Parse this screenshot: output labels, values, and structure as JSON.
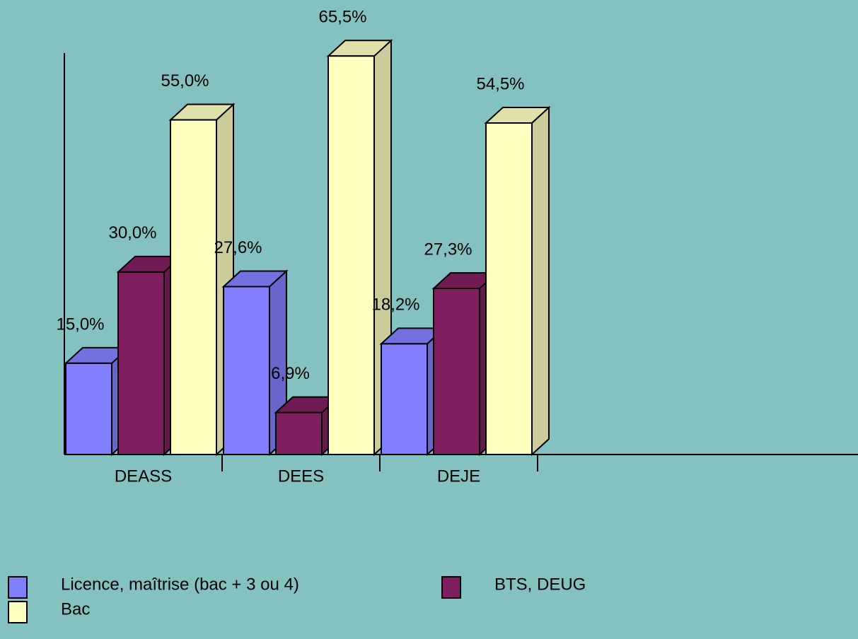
{
  "chart_data": {
    "type": "bar3d",
    "categories": [
      "DEASS",
      "DEES",
      "DEJE"
    ],
    "series": [
      {
        "name": "Licence, maîtrise (bac + 3 ou 4)",
        "color": "#8080ff",
        "values": [
          15.0,
          27.6,
          18.2
        ],
        "value_labels": [
          "15,0%",
          "27,6%",
          "18,2%"
        ]
      },
      {
        "name": "BTS, DEUG",
        "color": "#7f1f5f",
        "values": [
          30.0,
          6.9,
          27.3
        ],
        "value_labels": [
          "30,0%",
          "6,9%",
          "27,3%"
        ]
      },
      {
        "name": "Bac",
        "color": "#ffffc0",
        "values": [
          55.0,
          65.5,
          54.5
        ],
        "value_labels": [
          "55,0%",
          "65,5%",
          "54,5%"
        ]
      }
    ],
    "ylim": [
      0,
      66
    ]
  }
}
